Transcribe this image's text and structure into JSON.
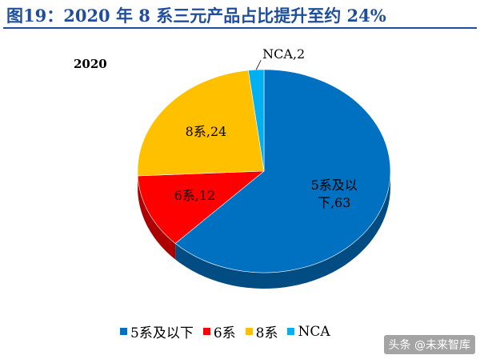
{
  "figure_title": "图19：2020 年 8 系三元产品占比提升至约 24%",
  "watermark": "头条 @未来智库",
  "chart_data": {
    "type": "pie",
    "title": "2020",
    "categories": [
      "5系及以下",
      "6系",
      "8系",
      "NCA"
    ],
    "values": [
      63,
      12,
      24,
      2
    ],
    "colors": [
      "#0070c0",
      "#ff0000",
      "#ffc000",
      "#00b0f0"
    ],
    "data_labels": [
      "5系及以\n下,63",
      "6系,12",
      "8系,24",
      "NCA,2"
    ],
    "legend_position": "bottom"
  }
}
